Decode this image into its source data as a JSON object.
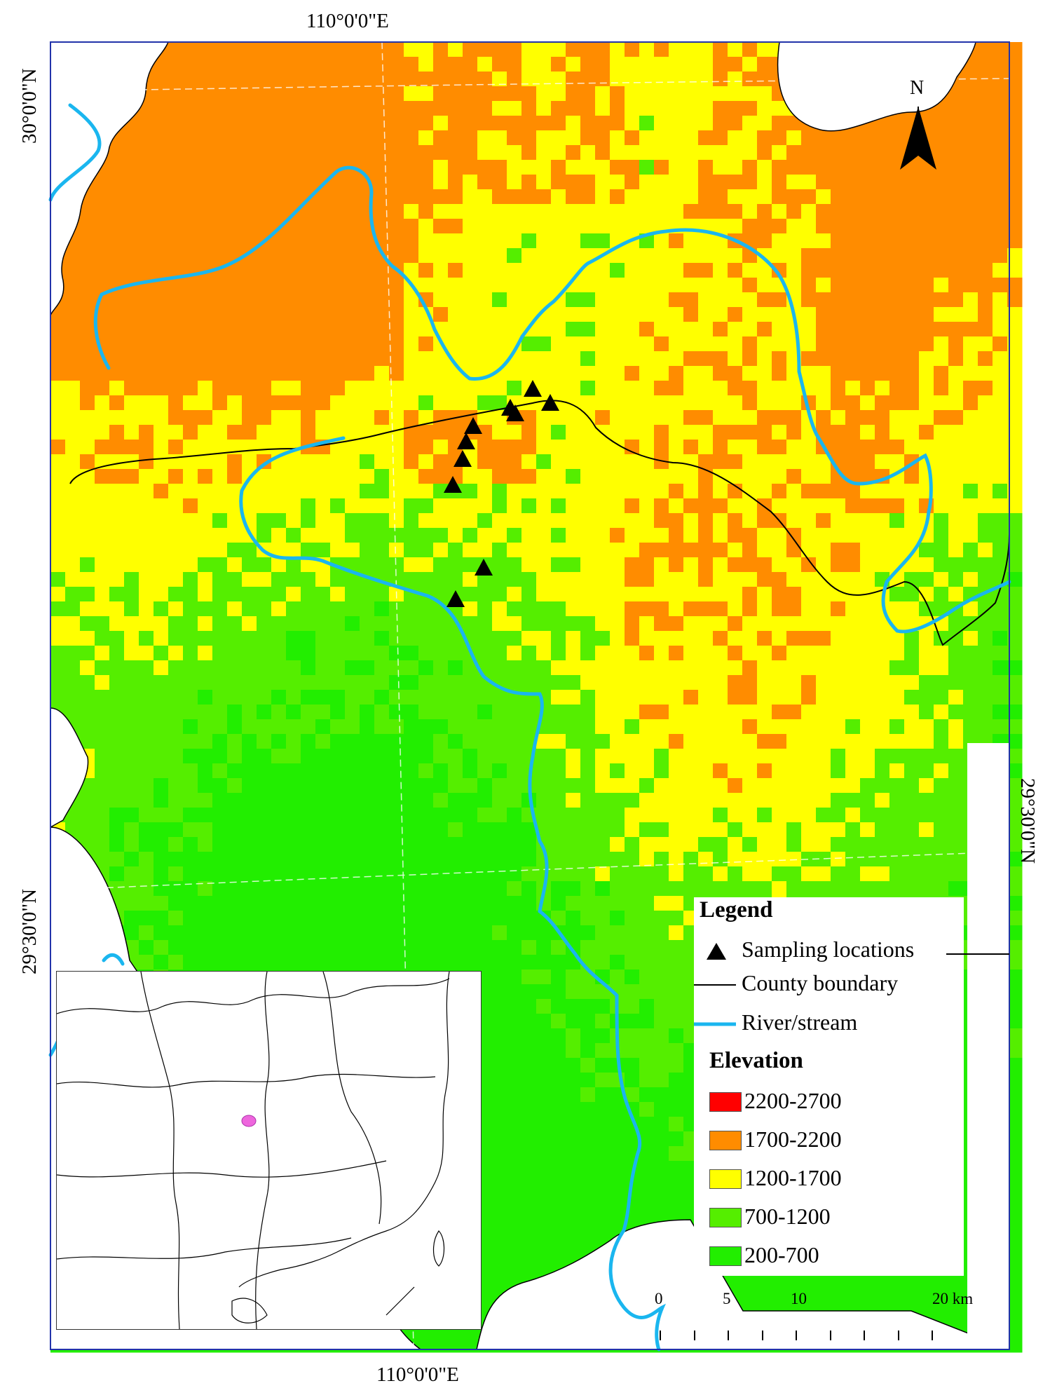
{
  "coordinates": {
    "top_label": "110°0'0\"E",
    "bottom_label": "110°0'0\"E",
    "left_top_label": "30°0'0\"N",
    "left_bottom_label": "29°30'0\"N",
    "right_label": "29°30'0\"N"
  },
  "north_arrow": {
    "label": "N",
    "icon": "north-arrow-icon"
  },
  "legend": {
    "title": "Legend",
    "items": [
      {
        "label": "Sampling locations",
        "icon": "triangle-icon"
      },
      {
        "label": "County boundary",
        "icon": "line-icon",
        "color": "#000000"
      },
      {
        "label": "River/stream",
        "icon": "line-icon",
        "color": "#1ab6ef"
      }
    ],
    "elevation_title": "Elevation",
    "elevation_classes": [
      {
        "label": "2200-2700",
        "color": "#ff0000"
      },
      {
        "label": "1700-2200",
        "color": "#ff8c00"
      },
      {
        "label": "1200-1700",
        "color": "#ffff00"
      },
      {
        "label": "700-1200",
        "color": "#55ee00"
      },
      {
        "label": "200-700",
        "color": "#22ee00"
      }
    ]
  },
  "scale_bar": {
    "labels": [
      "0",
      "5",
      "10",
      "20 km"
    ]
  },
  "colors": {
    "river": "#1ab6ef",
    "boundary": "#000000",
    "frame": "#2222aa",
    "inset_highlight": "#ee66dd"
  }
}
